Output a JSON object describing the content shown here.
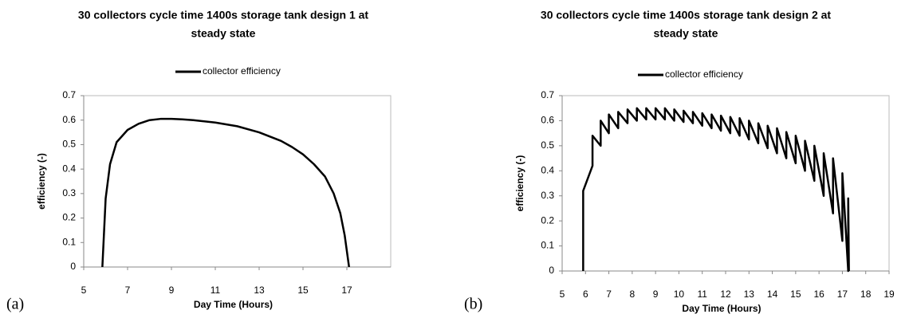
{
  "chart_data": [
    {
      "type": "line",
      "title_lines": [
        "30 collectors cycle time 1400s storage tank design 1 at",
        "steady state"
      ],
      "panel_label": "(a)",
      "x_label": "Day Time (Hours)",
      "y_label": "efficiency (-)",
      "xlim": [
        5,
        19
      ],
      "xticks": [
        5,
        7,
        9,
        11,
        13,
        15,
        17
      ],
      "ylim": [
        0,
        0.7
      ],
      "yticks": [
        0,
        0.1,
        0.2,
        0.3,
        0.4,
        0.5,
        0.6,
        0.7
      ],
      "series": [
        {
          "name": "collector efficiency",
          "color": "#000000",
          "x": [
            5.85,
            6.0,
            6.2,
            6.5,
            7.0,
            7.5,
            8.0,
            8.5,
            9.0,
            9.5,
            10.0,
            11.0,
            12.0,
            13.0,
            14.0,
            14.5,
            15.0,
            15.5,
            16.0,
            16.4,
            16.7,
            16.9,
            17.1
          ],
          "values": [
            0,
            0.28,
            0.42,
            0.51,
            0.56,
            0.585,
            0.6,
            0.605,
            0.605,
            0.603,
            0.6,
            0.59,
            0.575,
            0.55,
            0.515,
            0.49,
            0.46,
            0.42,
            0.37,
            0.3,
            0.22,
            0.13,
            0
          ]
        }
      ]
    },
    {
      "type": "line",
      "title_lines": [
        "30 collectors cycle time 1400s storage tank design 2 at",
        "steady state"
      ],
      "panel_label": "(b)",
      "x_label": "Day Time (Hours)",
      "y_label": "efficiency (-)",
      "xlim": [
        5,
        19
      ],
      "xticks": [
        5,
        6,
        7,
        8,
        9,
        10,
        11,
        12,
        13,
        14,
        15,
        16,
        17,
        18,
        19
      ],
      "ylim": [
        0,
        0.7
      ],
      "yticks": [
        0,
        0.1,
        0.2,
        0.3,
        0.4,
        0.5,
        0.6,
        0.7
      ],
      "series": [
        {
          "name": "collector efficiency",
          "color": "#000000",
          "x": [
            5.9,
            5.9,
            6.3,
            6.3,
            6.65,
            6.65,
            7.0,
            7.0,
            7.4,
            7.4,
            7.8,
            7.8,
            8.2,
            8.2,
            8.6,
            8.6,
            9.0,
            9.0,
            9.4,
            9.4,
            9.8,
            9.8,
            10.2,
            10.2,
            10.6,
            10.6,
            11.0,
            11.0,
            11.4,
            11.4,
            11.8,
            11.8,
            12.2,
            12.2,
            12.6,
            12.6,
            13.0,
            13.0,
            13.4,
            13.4,
            13.8,
            13.8,
            14.2,
            14.2,
            14.6,
            14.6,
            15.0,
            15.0,
            15.4,
            15.4,
            15.8,
            15.8,
            16.2,
            16.2,
            16.6,
            16.6,
            17.0,
            17.0,
            17.25,
            17.25,
            17.28
          ],
          "values": [
            0,
            0.32,
            0.42,
            0.54,
            0.5,
            0.6,
            0.55,
            0.625,
            0.57,
            0.635,
            0.59,
            0.645,
            0.6,
            0.65,
            0.605,
            0.65,
            0.605,
            0.65,
            0.605,
            0.65,
            0.6,
            0.645,
            0.595,
            0.64,
            0.59,
            0.635,
            0.58,
            0.63,
            0.57,
            0.625,
            0.56,
            0.62,
            0.55,
            0.615,
            0.54,
            0.61,
            0.525,
            0.6,
            0.51,
            0.59,
            0.49,
            0.58,
            0.47,
            0.57,
            0.45,
            0.555,
            0.43,
            0.54,
            0.4,
            0.52,
            0.36,
            0.5,
            0.3,
            0.47,
            0.23,
            0.45,
            0.12,
            0.39,
            0,
            0.29,
            0
          ]
        }
      ]
    }
  ]
}
